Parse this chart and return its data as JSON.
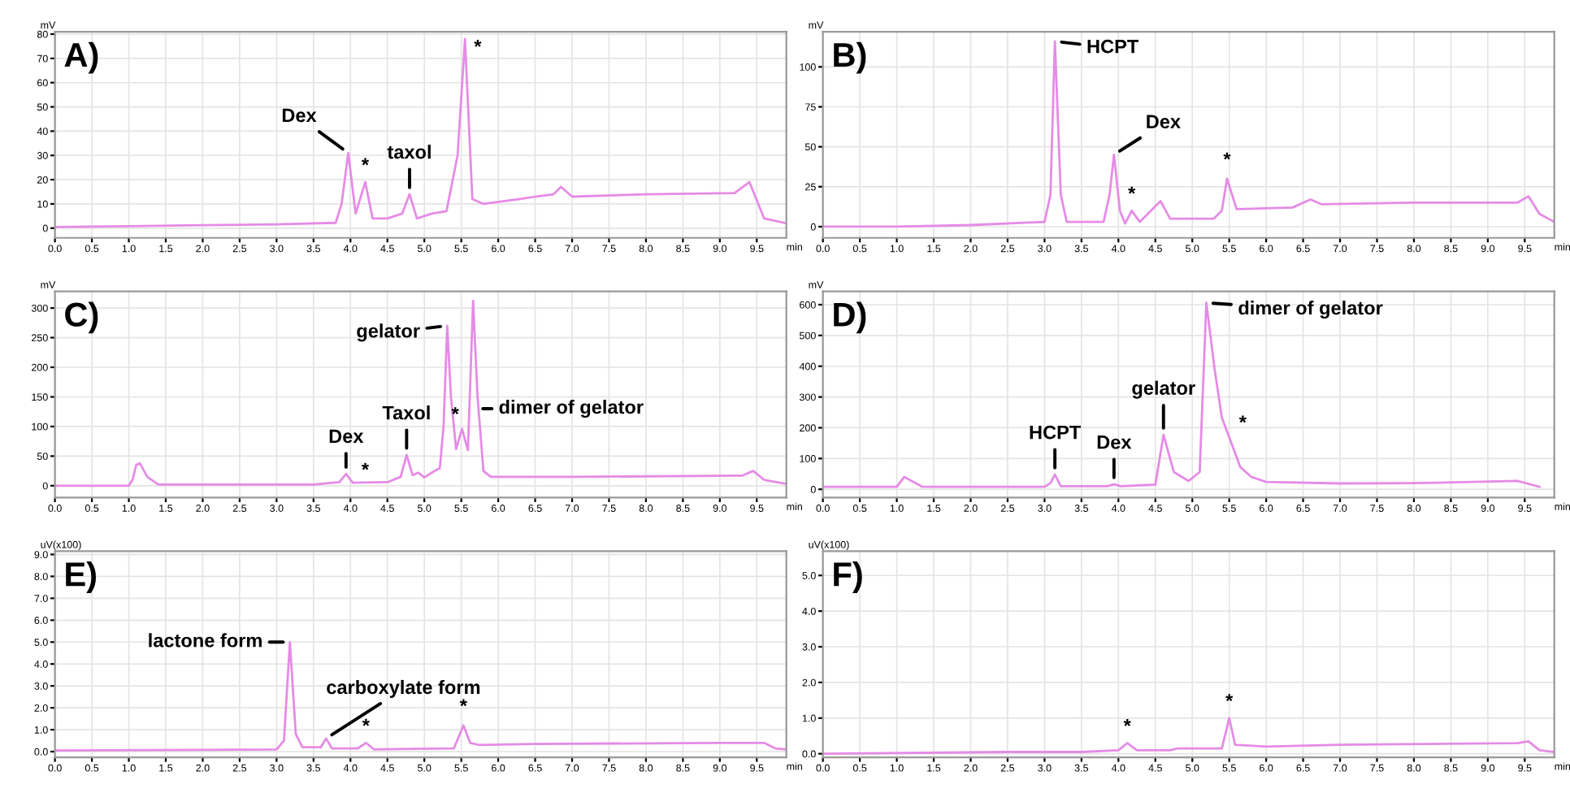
{
  "chart_data": [
    {
      "type": "line",
      "title": "A)",
      "ylabel": "mV",
      "xlabel": "min",
      "grid": true,
      "marker": "none",
      "line_style": "solid",
      "x": [
        0,
        1.0,
        2.0,
        3.0,
        3.8,
        3.88,
        3.97,
        4.07,
        4.2,
        4.3,
        4.5,
        4.7,
        4.8,
        4.9,
        5.1,
        5.3,
        5.45,
        5.55,
        5.65,
        5.8,
        6.3,
        6.5,
        6.75,
        6.85,
        7.0,
        8.0,
        9.2,
        9.4,
        9.6,
        9.9
      ],
      "series": [
        {
          "color": "#e58be6",
          "values": [
            0.5,
            0.8,
            1.2,
            1.6,
            2.2,
            10,
            31,
            6,
            19,
            4,
            4,
            6,
            14,
            4,
            6,
            7,
            30,
            78,
            12,
            10,
            12,
            13,
            14,
            17,
            13,
            14,
            14.5,
            19,
            4,
            2
          ]
        }
      ],
      "xlim": [
        0,
        9.9
      ],
      "ylim": [
        -4,
        81
      ],
      "xticks": [
        {
          "value": 0,
          "label": "0.0"
        },
        0.5,
        {
          "value": 1,
          "label": "1.0"
        },
        1.5,
        {
          "value": 2,
          "label": "2.0"
        },
        2.5,
        {
          "value": 3,
          "label": "3.0"
        },
        3.5,
        {
          "value": 4,
          "label": "4.0"
        },
        4.5,
        {
          "value": 5,
          "label": "5.0"
        },
        5.5,
        {
          "value": 6,
          "label": "6.0"
        },
        6.5,
        {
          "value": 7,
          "label": "7.0"
        },
        7.5,
        {
          "value": 8,
          "label": "8.0"
        },
        8.5,
        {
          "value": 9,
          "label": "9.0"
        },
        9.5
      ],
      "yticks": [
        0,
        10,
        20,
        30,
        40,
        50,
        60,
        70,
        80
      ],
      "annotations": [
        {
          "text": "Dex",
          "x": 3.97,
          "y": 31
        },
        {
          "text": "*",
          "x": 4.2,
          "y": 19
        },
        {
          "text": "taxol",
          "x": 4.8,
          "y": 14
        },
        {
          "text": "*",
          "x": 5.55,
          "y": 78
        }
      ]
    },
    {
      "type": "line",
      "title": "B)",
      "ylabel": "mV",
      "xlabel": "min",
      "grid": true,
      "marker": "none",
      "line_style": "solid",
      "x": [
        0,
        1.0,
        2.0,
        3.0,
        3.08,
        3.14,
        3.22,
        3.3,
        3.8,
        3.88,
        3.94,
        4.02,
        4.09,
        4.18,
        4.29,
        4.57,
        4.7,
        5.29,
        5.4,
        5.47,
        5.6,
        6.36,
        6.6,
        6.75,
        8.0,
        9.4,
        9.55,
        9.7,
        9.9
      ],
      "series": [
        {
          "color": "#e58be6",
          "values": [
            0,
            0,
            1,
            3,
            20,
            116,
            20,
            3,
            3,
            20,
            45,
            10,
            2,
            10,
            3,
            16,
            5,
            5,
            10,
            30,
            11,
            12,
            17,
            14,
            15,
            15,
            19,
            8,
            3
          ]
        }
      ],
      "xlim": [
        0,
        9.9
      ],
      "ylim": [
        -7,
        122
      ],
      "xticks": [
        {
          "value": 0,
          "label": "0.0"
        },
        0.5,
        {
          "value": 1,
          "label": "1.0"
        },
        1.5,
        {
          "value": 2,
          "label": "2.0"
        },
        2.5,
        {
          "value": 3,
          "label": "3.0"
        },
        3.5,
        {
          "value": 4,
          "label": "4.0"
        },
        4.5,
        {
          "value": 5,
          "label": "5.0"
        },
        5.5,
        {
          "value": 6,
          "label": "6.0"
        },
        6.5,
        {
          "value": 7,
          "label": "7.0"
        },
        7.5,
        {
          "value": 8,
          "label": "8.0"
        },
        8.5,
        {
          "value": 9,
          "label": "9.0"
        },
        9.5
      ],
      "yticks": [
        0,
        25,
        50,
        75,
        100
      ],
      "annotations": [
        {
          "text": "HCPT",
          "x": 3.14,
          "y": 116
        },
        {
          "text": "Dex",
          "x": 3.94,
          "y": 45
        },
        {
          "text": "*",
          "x": 4.18,
          "y": 10
        },
        {
          "text": "*",
          "x": 5.47,
          "y": 30
        }
      ]
    },
    {
      "type": "line",
      "title": "C)",
      "ylabel": "mV",
      "xlabel": "min",
      "grid": true,
      "marker": "none",
      "line_style": "solid",
      "x": [
        0,
        1.0,
        1.05,
        1.1,
        1.15,
        1.25,
        1.4,
        3.5,
        3.85,
        3.94,
        4.03,
        4.5,
        4.68,
        4.76,
        4.84,
        4.92,
        5.0,
        5.1,
        5.21,
        5.26,
        5.31,
        5.36,
        5.43,
        5.51,
        5.59,
        5.66,
        5.72,
        5.8,
        5.9,
        6.5,
        7.0,
        9.3,
        9.45,
        9.6,
        9.9
      ],
      "series": [
        {
          "color": "#e58be6",
          "values": [
            0,
            0,
            10,
            35,
            38,
            15,
            2,
            2,
            6,
            20,
            5,
            6,
            15,
            52,
            18,
            22,
            14,
            22,
            30,
            100,
            270,
            150,
            62,
            96,
            60,
            312,
            150,
            25,
            15,
            15,
            15,
            17,
            25,
            10,
            3
          ]
        }
      ],
      "xlim": [
        0,
        9.9
      ],
      "ylim": [
        -20,
        328
      ],
      "xticks": [
        {
          "value": 0,
          "label": "0.0"
        },
        0.5,
        {
          "value": 1,
          "label": "1.0"
        },
        1.5,
        {
          "value": 2,
          "label": "2.0"
        },
        2.5,
        {
          "value": 3,
          "label": "3.0"
        },
        3.5,
        {
          "value": 4,
          "label": "4.0"
        },
        4.5,
        {
          "value": 5,
          "label": "5.0"
        },
        5.5,
        {
          "value": 6,
          "label": "6.0"
        },
        6.5,
        {
          "value": 7,
          "label": "7.0"
        },
        7.5,
        {
          "value": 8,
          "label": "8.0"
        },
        8.5,
        {
          "value": 9,
          "label": "9.0"
        },
        9.5
      ],
      "yticks": [
        0,
        50,
        100,
        150,
        200,
        250,
        300
      ],
      "annotations": [
        {
          "text": "Dex",
          "x": 3.94,
          "y": 20
        },
        {
          "text": "*",
          "x": 4.2,
          "y": 2
        },
        {
          "text": "Taxol",
          "x": 4.76,
          "y": 52
        },
        {
          "text": "gelator",
          "x": 5.31,
          "y": 270
        },
        {
          "text": "*",
          "x": 5.51,
          "y": 96
        },
        {
          "text": "dimer of gelator",
          "x": 5.7,
          "y": 130
        }
      ]
    },
    {
      "type": "line",
      "title": "D)",
      "ylabel": "mV",
      "xlabel": "min",
      "grid": true,
      "marker": "none",
      "line_style": "solid",
      "x": [
        0,
        1.0,
        1.1,
        1.35,
        3.0,
        3.08,
        3.14,
        3.22,
        3.85,
        3.94,
        4.03,
        4.5,
        4.61,
        4.75,
        4.95,
        5.1,
        5.19,
        5.3,
        5.4,
        5.5,
        5.65,
        5.8,
        6.0,
        7.0,
        8.0,
        9.4,
        9.7
      ],
      "series": [
        {
          "color": "#e58be6",
          "values": [
            8,
            8,
            40,
            8,
            8,
            20,
            48,
            10,
            10,
            16,
            10,
            15,
            177,
            56,
            27,
            56,
            606,
            394,
            233,
            169,
            72,
            40,
            24,
            19,
            20,
            27,
            8
          ]
        }
      ],
      "xlim": [
        0,
        9.9
      ],
      "ylim": [
        -27,
        643
      ],
      "xticks": [
        {
          "value": 0,
          "label": "0.0"
        },
        0.5,
        {
          "value": 1,
          "label": "1.0"
        },
        1.5,
        {
          "value": 2,
          "label": "2.0"
        },
        2.5,
        {
          "value": 3,
          "label": "3.0"
        },
        3.5,
        {
          "value": 4,
          "label": "4.0"
        },
        4.5,
        {
          "value": 5,
          "label": "5.0"
        },
        5.5,
        {
          "value": 6,
          "label": "6.0"
        },
        6.5,
        {
          "value": 7,
          "label": "7.0"
        },
        7.5,
        {
          "value": 8,
          "label": "8.0"
        },
        8.5,
        {
          "value": 9,
          "label": "9.0"
        },
        9.5
      ],
      "yticks": [
        0,
        100,
        200,
        300,
        400,
        500,
        600
      ],
      "annotations": [
        {
          "text": "HCPT",
          "x": 3.14,
          "y": 48
        },
        {
          "text": "Dex",
          "x": 3.94,
          "y": 16
        },
        {
          "text": "gelator",
          "x": 4.61,
          "y": 177
        },
        {
          "text": "dimer of gelator",
          "x": 5.19,
          "y": 606
        },
        {
          "text": "*",
          "x": 5.5,
          "y": 169
        }
      ]
    },
    {
      "type": "line",
      "title": "E)",
      "ylabel": "uV(x100)",
      "xlabel": "min",
      "grid": true,
      "marker": "none",
      "line_style": "solid",
      "x": [
        0,
        3.0,
        3.1,
        3.18,
        3.26,
        3.35,
        3.6,
        3.67,
        3.75,
        4.1,
        4.21,
        4.32,
        5.4,
        5.53,
        5.62,
        5.75,
        6.5,
        9.0,
        9.6,
        9.75,
        9.9
      ],
      "series": [
        {
          "color": "#e58be6",
          "values": [
            0.05,
            0.1,
            0.5,
            5.0,
            0.8,
            0.2,
            0.2,
            0.6,
            0.15,
            0.15,
            0.4,
            0.1,
            0.15,
            1.2,
            0.4,
            0.3,
            0.35,
            0.4,
            0.4,
            0.15,
            0.1
          ]
        }
      ],
      "xlim": [
        0,
        9.9
      ],
      "ylim": [
        -0.26,
        9.15
      ],
      "xticks": [
        {
          "value": 0,
          "label": "0.0"
        },
        0.5,
        {
          "value": 1,
          "label": "1.0"
        },
        1.5,
        {
          "value": 2,
          "label": "2.0"
        },
        2.5,
        {
          "value": 3,
          "label": "3.0"
        },
        3.5,
        {
          "value": 4,
          "label": "4.0"
        },
        4.5,
        {
          "value": 5,
          "label": "5.0"
        },
        5.5,
        {
          "value": 6,
          "label": "6.0"
        },
        6.5,
        {
          "value": 7,
          "label": "7.0"
        },
        7.5,
        {
          "value": 8,
          "label": "8.0"
        },
        8.5,
        {
          "value": 9,
          "label": "9.0"
        },
        9.5
      ],
      "yticks": [
        {
          "value": 0,
          "label": "0.0"
        },
        {
          "value": 1,
          "label": "1.0"
        },
        {
          "value": 2,
          "label": "2.0"
        },
        {
          "value": 3,
          "label": "3.0"
        },
        {
          "value": 4,
          "label": "4.0"
        },
        {
          "value": 5,
          "label": "5.0"
        },
        {
          "value": 6,
          "label": "6.0"
        },
        {
          "value": 7,
          "label": "7.0"
        },
        {
          "value": 8,
          "label": "8.0"
        },
        {
          "value": 9,
          "label": "9.0"
        }
      ],
      "annotations": [
        {
          "text": "lactone form",
          "x": 3.18,
          "y": 5.0
        },
        {
          "text": "carboxylate form",
          "x": 3.67,
          "y": 0.6
        },
        {
          "text": "*",
          "x": 4.21,
          "y": 0.4
        },
        {
          "text": "*",
          "x": 5.53,
          "y": 1.2
        }
      ]
    },
    {
      "type": "line",
      "title": "F)",
      "ylabel": "uV(x100)",
      "xlabel": "min",
      "grid": true,
      "marker": "none",
      "line_style": "solid",
      "x": [
        0,
        2.5,
        3.5,
        4.0,
        4.12,
        4.25,
        4.7,
        4.8,
        5.4,
        5.5,
        5.58,
        6.0,
        7.0,
        9.4,
        9.55,
        9.7,
        9.9
      ],
      "series": [
        {
          "color": "#e58be6",
          "values": [
            0,
            0.05,
            0.05,
            0.1,
            0.3,
            0.1,
            0.1,
            0.15,
            0.15,
            1.0,
            0.25,
            0.2,
            0.25,
            0.3,
            0.35,
            0.1,
            0.05
          ]
        }
      ],
      "xlim": [
        0,
        9.9
      ],
      "ylim": [
        -0.1,
        5.68
      ],
      "xticks": [
        {
          "value": 0,
          "label": "0.0"
        },
        0.5,
        {
          "value": 1,
          "label": "1.0"
        },
        1.5,
        {
          "value": 2,
          "label": "2.0"
        },
        2.5,
        {
          "value": 3,
          "label": "3.0"
        },
        3.5,
        {
          "value": 4,
          "label": "4.0"
        },
        4.5,
        {
          "value": 5,
          "label": "5.0"
        },
        5.5,
        {
          "value": 6,
          "label": "6.0"
        },
        6.5,
        {
          "value": 7,
          "label": "7.0"
        },
        7.5,
        {
          "value": 8,
          "label": "8.0"
        },
        8.5,
        {
          "value": 9,
          "label": "9.0"
        },
        9.5
      ],
      "yticks": [
        {
          "value": 0,
          "label": "0.0"
        },
        {
          "value": 1,
          "label": "1.0"
        },
        {
          "value": 2,
          "label": "2.0"
        },
        {
          "value": 3,
          "label": "3.0"
        },
        {
          "value": 4,
          "label": "4.0"
        },
        {
          "value": 5,
          "label": "5.0"
        }
      ],
      "annotations": [
        {
          "text": "*",
          "x": 4.12,
          "y": 0.3
        },
        {
          "text": "*",
          "x": 5.5,
          "y": 1.0
        }
      ]
    }
  ]
}
